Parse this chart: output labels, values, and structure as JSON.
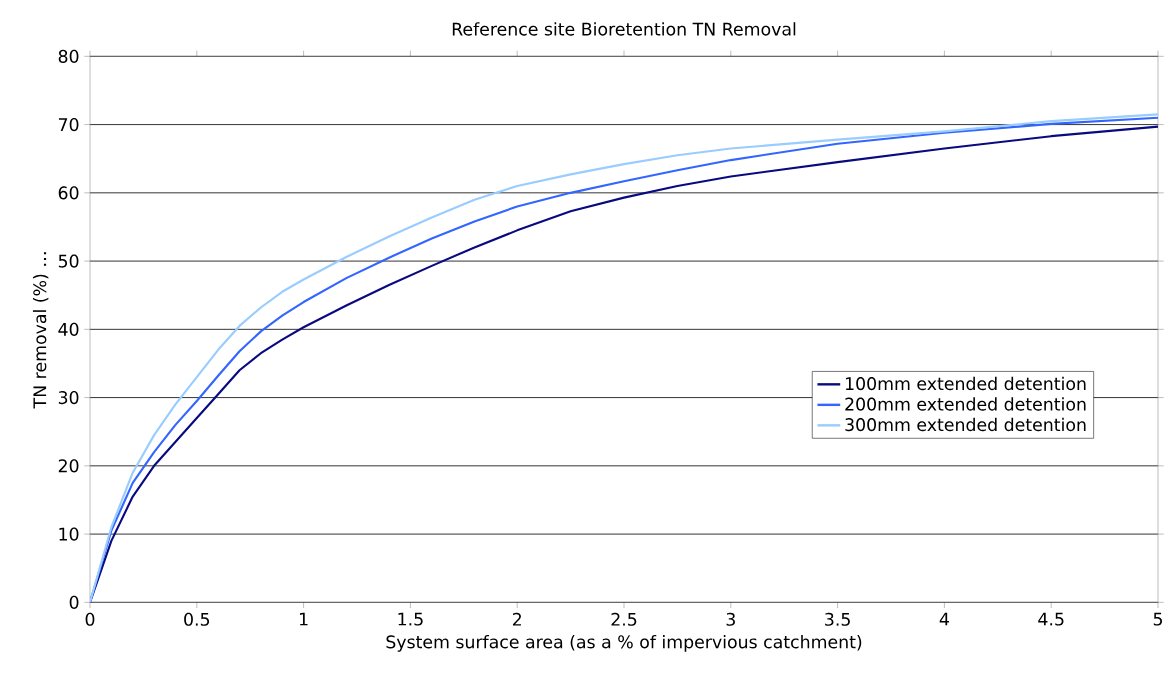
{
  "chart_data": {
    "type": "line",
    "title": "Reference site Bioretention TN Removal",
    "xlabel": "System surface area (as a % of impervious catchment)",
    "ylabel": "TN removal (%)       …",
    "xlim": [
      0,
      5
    ],
    "ylim": [
      0,
      80
    ],
    "xticks": [
      0,
      0.5,
      1,
      1.5,
      2,
      2.5,
      3,
      3.5,
      4,
      4.5,
      5
    ],
    "yticks": [
      0,
      10,
      20,
      30,
      40,
      50,
      60,
      70,
      80
    ],
    "grid": "y",
    "legend": "right",
    "marker": "none",
    "line_style": "solid",
    "x": [
      0,
      0.1,
      0.2,
      0.3,
      0.4,
      0.5,
      0.6,
      0.7,
      0.8,
      0.9,
      1,
      1.2,
      1.4,
      1.6,
      1.8,
      2,
      2.25,
      2.5,
      2.75,
      3,
      3.5,
      4,
      4.5,
      5
    ],
    "series": [
      {
        "name": "100mm extended detention",
        "color": "#0a0a80",
        "values": [
          0,
          9,
          15.5,
          20,
          23.5,
          27,
          30.5,
          34,
          36.5,
          38.5,
          40.3,
          43.5,
          46.5,
          49.3,
          52,
          54.5,
          57.3,
          59.3,
          61,
          62.4,
          64.5,
          66.5,
          68.3,
          69.7
        ]
      },
      {
        "name": "200mm extended detention",
        "color": "#3366ff",
        "values": [
          0,
          10.5,
          17.5,
          22,
          26,
          29.5,
          33.2,
          36.8,
          39.7,
          42,
          44,
          47.5,
          50.5,
          53.3,
          55.8,
          58,
          60,
          61.7,
          63.3,
          64.8,
          67.2,
          68.8,
          70.1,
          71
        ]
      },
      {
        "name": "300mm extended detention",
        "color": "#99ccff",
        "values": [
          0,
          11,
          19,
          24.5,
          29,
          33,
          37,
          40.5,
          43.2,
          45.5,
          47.3,
          50.6,
          53.6,
          56.4,
          59,
          61,
          62.7,
          64.2,
          65.5,
          66.5,
          67.8,
          69,
          70.5,
          71.5
        ]
      }
    ]
  }
}
